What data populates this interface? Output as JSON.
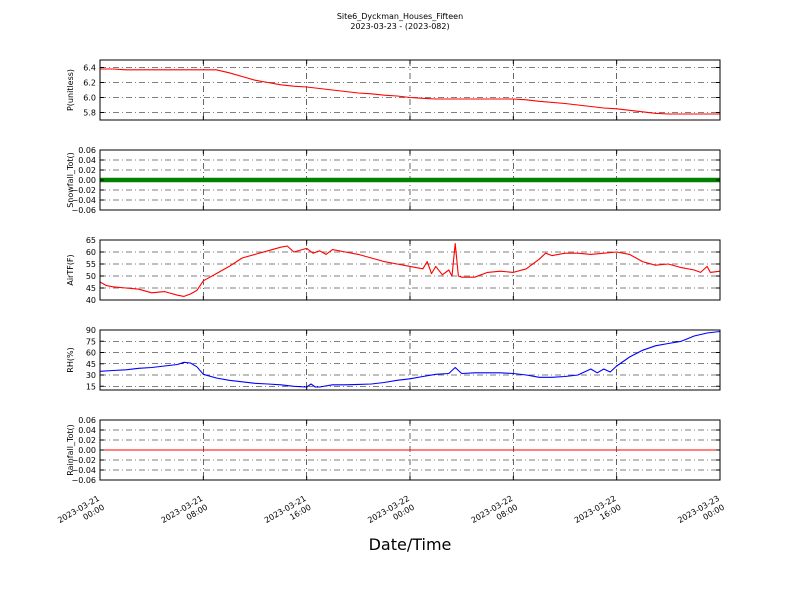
{
  "figure": {
    "title": "Site6_Dyckman_Houses_Fifteen",
    "subtitle": "2023-03-23 - (2023-082)",
    "xlabel": "Date/Time"
  },
  "chart_data": {
    "type": "line",
    "x_range": [
      "2023-03-21 00:00",
      "2023-03-23 00:00"
    ],
    "x_ticks": [
      {
        "t": "2023-03-21 00:00",
        "label": [
          "2023-03-21",
          "00:00"
        ]
      },
      {
        "t": "2023-03-21 08:00",
        "label": [
          "2023-03-21",
          "08:00"
        ]
      },
      {
        "t": "2023-03-21 16:00",
        "label": [
          "2023-03-21",
          "16:00"
        ]
      },
      {
        "t": "2023-03-22 00:00",
        "label": [
          "2023-03-22",
          "00:00"
        ]
      },
      {
        "t": "2023-03-22 08:00",
        "label": [
          "2023-03-22",
          "08:00"
        ]
      },
      {
        "t": "2023-03-22 16:00",
        "label": [
          "2023-03-22",
          "16:00"
        ]
      },
      {
        "t": "2023-03-23 00:00",
        "label": [
          "2023-03-23",
          "00:00"
        ]
      }
    ],
    "grid": true,
    "panels": [
      {
        "ylabel": "P(unitless)",
        "ylim": [
          5.7,
          6.5
        ],
        "yticks": [
          5.8,
          6.0,
          6.2,
          6.4
        ],
        "ytick_labels": [
          "5.8",
          "6.0",
          "6.2",
          "6.4"
        ],
        "color": "#ff0000",
        "style": "line",
        "series": [
          [
            "2023-03-21 00:00",
            6.38
          ],
          [
            "2023-03-21 01:00",
            6.38
          ],
          [
            "2023-03-21 02:00",
            6.37
          ],
          [
            "2023-03-21 04:00",
            6.37
          ],
          [
            "2023-03-21 06:00",
            6.37
          ],
          [
            "2023-03-21 08:00",
            6.37
          ],
          [
            "2023-03-21 09:00",
            6.37
          ],
          [
            "2023-03-21 10:00",
            6.33
          ],
          [
            "2023-03-21 11:00",
            6.28
          ],
          [
            "2023-03-21 12:00",
            6.23
          ],
          [
            "2023-03-21 13:00",
            6.2
          ],
          [
            "2023-03-21 14:00",
            6.17
          ],
          [
            "2023-03-21 15:00",
            6.15
          ],
          [
            "2023-03-21 16:00",
            6.14
          ],
          [
            "2023-03-21 17:00",
            6.12
          ],
          [
            "2023-03-21 18:00",
            6.1
          ],
          [
            "2023-03-21 19:00",
            6.08
          ],
          [
            "2023-03-21 20:00",
            6.06
          ],
          [
            "2023-03-21 21:00",
            6.05
          ],
          [
            "2023-03-21 22:00",
            6.03
          ],
          [
            "2023-03-21 23:00",
            6.02
          ],
          [
            "2023-03-22 00:00",
            6.0
          ],
          [
            "2023-03-22 01:00",
            5.99
          ],
          [
            "2023-03-22 02:00",
            5.98
          ],
          [
            "2023-03-22 04:00",
            5.98
          ],
          [
            "2023-03-22 06:00",
            5.98
          ],
          [
            "2023-03-22 08:00",
            5.98
          ],
          [
            "2023-03-22 09:00",
            5.97
          ],
          [
            "2023-03-22 10:00",
            5.95
          ],
          [
            "2023-03-22 12:00",
            5.92
          ],
          [
            "2023-03-22 13:00",
            5.9
          ],
          [
            "2023-03-22 14:00",
            5.88
          ],
          [
            "2023-03-22 15:00",
            5.86
          ],
          [
            "2023-03-22 16:00",
            5.85
          ],
          [
            "2023-03-22 17:00",
            5.83
          ],
          [
            "2023-03-22 18:00",
            5.81
          ],
          [
            "2023-03-22 19:00",
            5.79
          ],
          [
            "2023-03-22 20:00",
            5.78
          ],
          [
            "2023-03-22 22:00",
            5.78
          ],
          [
            "2023-03-23 00:00",
            5.78
          ]
        ]
      },
      {
        "ylabel": "Snowfall_Tot()",
        "ylim": [
          -0.06,
          0.06
        ],
        "yticks": [
          -0.06,
          -0.04,
          -0.02,
          0.0,
          0.02,
          0.04,
          0.06
        ],
        "ytick_labels": [
          "−0.06",
          "−0.04",
          "−0.02",
          "0.00",
          "0.02",
          "0.04",
          "0.06"
        ],
        "color": "#008000",
        "style": "thick-line",
        "series": [
          [
            "2023-03-21 00:00",
            0.0
          ],
          [
            "2023-03-23 00:00",
            0.0
          ]
        ]
      },
      {
        "ylabel": "AirTF(F)",
        "ylim": [
          40,
          65
        ],
        "yticks": [
          40,
          45,
          50,
          55,
          60,
          65
        ],
        "ytick_labels": [
          "40",
          "45",
          "50",
          "55",
          "60",
          "65"
        ],
        "color": "#ff0000",
        "style": "line",
        "series": [
          [
            "2023-03-21 00:00",
            47.5
          ],
          [
            "2023-03-21 00:30",
            46
          ],
          [
            "2023-03-21 01:00",
            45.5
          ],
          [
            "2023-03-21 02:00",
            45
          ],
          [
            "2023-03-21 03:00",
            44.5
          ],
          [
            "2023-03-21 04:00",
            43
          ],
          [
            "2023-03-21 05:00",
            43.5
          ],
          [
            "2023-03-21 06:00",
            42
          ],
          [
            "2023-03-21 06:30",
            41.5
          ],
          [
            "2023-03-21 07:00",
            42.5
          ],
          [
            "2023-03-21 07:30",
            44
          ],
          [
            "2023-03-21 08:00",
            48
          ],
          [
            "2023-03-21 09:00",
            51
          ],
          [
            "2023-03-21 10:00",
            54
          ],
          [
            "2023-03-21 11:00",
            57.5
          ],
          [
            "2023-03-21 12:00",
            59
          ],
          [
            "2023-03-21 13:00",
            60.5
          ],
          [
            "2023-03-21 14:00",
            62
          ],
          [
            "2023-03-21 14:30",
            62.5
          ],
          [
            "2023-03-21 15:00",
            60
          ],
          [
            "2023-03-21 16:00",
            61.5
          ],
          [
            "2023-03-21 16:30",
            59.5
          ],
          [
            "2023-03-21 17:00",
            60.5
          ],
          [
            "2023-03-21 17:30",
            59
          ],
          [
            "2023-03-21 18:00",
            61
          ],
          [
            "2023-03-21 19:00",
            60
          ],
          [
            "2023-03-21 20:00",
            59
          ],
          [
            "2023-03-21 21:00",
            57.5
          ],
          [
            "2023-03-21 22:00",
            56
          ],
          [
            "2023-03-21 23:00",
            55
          ],
          [
            "2023-03-22 00:00",
            54
          ],
          [
            "2023-03-22 01:00",
            53
          ],
          [
            "2023-03-22 01:20",
            56
          ],
          [
            "2023-03-22 01:40",
            51
          ],
          [
            "2023-03-22 02:00",
            54
          ],
          [
            "2023-03-22 02:30",
            50.5
          ],
          [
            "2023-03-22 03:00",
            52.5
          ],
          [
            "2023-03-22 03:15",
            50
          ],
          [
            "2023-03-22 03:30",
            63.5
          ],
          [
            "2023-03-22 03:45",
            50
          ],
          [
            "2023-03-22 04:00",
            49.5
          ],
          [
            "2023-03-22 05:00",
            49.5
          ],
          [
            "2023-03-22 06:00",
            51.5
          ],
          [
            "2023-03-22 07:00",
            52
          ],
          [
            "2023-03-22 08:00",
            51.5
          ],
          [
            "2023-03-22 09:00",
            53
          ],
          [
            "2023-03-22 10:00",
            57
          ],
          [
            "2023-03-22 10:30",
            59.5
          ],
          [
            "2023-03-22 11:00",
            58.5
          ],
          [
            "2023-03-22 12:00",
            59.5
          ],
          [
            "2023-03-22 13:00",
            59.5
          ],
          [
            "2023-03-22 14:00",
            59
          ],
          [
            "2023-03-22 15:00",
            59.5
          ],
          [
            "2023-03-22 16:00",
            60
          ],
          [
            "2023-03-22 17:00",
            59
          ],
          [
            "2023-03-22 18:00",
            56
          ],
          [
            "2023-03-22 19:00",
            54.5
          ],
          [
            "2023-03-22 20:00",
            55
          ],
          [
            "2023-03-22 21:00",
            53.5
          ],
          [
            "2023-03-22 22:00",
            52.5
          ],
          [
            "2023-03-22 22:30",
            51.5
          ],
          [
            "2023-03-22 23:00",
            54
          ],
          [
            "2023-03-22 23:15",
            51.5
          ],
          [
            "2023-03-23 00:00",
            52
          ]
        ]
      },
      {
        "ylabel": "RH(%)",
        "ylim": [
          10,
          90
        ],
        "yticks": [
          15,
          30,
          45,
          60,
          75,
          90
        ],
        "ytick_labels": [
          "15",
          "30",
          "45",
          "60",
          "75",
          "90"
        ],
        "color": "#0000ff",
        "style": "line",
        "series": [
          [
            "2023-03-21 00:00",
            35
          ],
          [
            "2023-03-21 01:00",
            36
          ],
          [
            "2023-03-21 02:00",
            37
          ],
          [
            "2023-03-21 03:00",
            39
          ],
          [
            "2023-03-21 04:00",
            40
          ],
          [
            "2023-03-21 05:00",
            42
          ],
          [
            "2023-03-21 06:00",
            44
          ],
          [
            "2023-03-21 06:30",
            47
          ],
          [
            "2023-03-21 07:00",
            46
          ],
          [
            "2023-03-21 07:30",
            41
          ],
          [
            "2023-03-21 08:00",
            31
          ],
          [
            "2023-03-21 09:00",
            26
          ],
          [
            "2023-03-21 10:00",
            23
          ],
          [
            "2023-03-21 11:00",
            21
          ],
          [
            "2023-03-21 12:00",
            19
          ],
          [
            "2023-03-21 13:00",
            18
          ],
          [
            "2023-03-21 14:00",
            17
          ],
          [
            "2023-03-21 15:00",
            15
          ],
          [
            "2023-03-21 16:00",
            14
          ],
          [
            "2023-03-21 16:20",
            18
          ],
          [
            "2023-03-21 16:40",
            14
          ],
          [
            "2023-03-21 17:00",
            14
          ],
          [
            "2023-03-21 18:00",
            17
          ],
          [
            "2023-03-21 19:00",
            17
          ],
          [
            "2023-03-21 20:00",
            17.5
          ],
          [
            "2023-03-21 21:00",
            18
          ],
          [
            "2023-03-21 22:00",
            20
          ],
          [
            "2023-03-21 23:00",
            23
          ],
          [
            "2023-03-22 00:00",
            25
          ],
          [
            "2023-03-22 01:00",
            28
          ],
          [
            "2023-03-22 02:00",
            31
          ],
          [
            "2023-03-22 03:00",
            32
          ],
          [
            "2023-03-22 03:30",
            40
          ],
          [
            "2023-03-22 04:00",
            32
          ],
          [
            "2023-03-22 05:00",
            33
          ],
          [
            "2023-03-22 06:00",
            33
          ],
          [
            "2023-03-22 07:00",
            33
          ],
          [
            "2023-03-22 08:00",
            32
          ],
          [
            "2023-03-22 09:00",
            30
          ],
          [
            "2023-03-22 10:00",
            27
          ],
          [
            "2023-03-22 11:00",
            27
          ],
          [
            "2023-03-22 12:00",
            28
          ],
          [
            "2023-03-22 13:00",
            30
          ],
          [
            "2023-03-22 14:00",
            38
          ],
          [
            "2023-03-22 14:30",
            33
          ],
          [
            "2023-03-22 15:00",
            38
          ],
          [
            "2023-03-22 15:30",
            34
          ],
          [
            "2023-03-22 16:00",
            42
          ],
          [
            "2023-03-22 17:00",
            54
          ],
          [
            "2023-03-22 18:00",
            63
          ],
          [
            "2023-03-22 19:00",
            69
          ],
          [
            "2023-03-22 20:00",
            72
          ],
          [
            "2023-03-22 21:00",
            75
          ],
          [
            "2023-03-22 22:00",
            82
          ],
          [
            "2023-03-22 23:00",
            86
          ],
          [
            "2023-03-23 00:00",
            88
          ]
        ]
      },
      {
        "ylabel": "Rainfall_Tot()",
        "ylim": [
          -0.06,
          0.06
        ],
        "yticks": [
          -0.06,
          -0.04,
          -0.02,
          0.0,
          0.02,
          0.04,
          0.06
        ],
        "ytick_labels": [
          "−0.06",
          "−0.04",
          "−0.02",
          "0.00",
          "0.02",
          "0.04",
          "0.06"
        ],
        "color": "#ff0000",
        "style": "line",
        "series": [
          [
            "2023-03-21 00:00",
            0.0
          ],
          [
            "2023-03-23 00:00",
            0.0
          ]
        ]
      }
    ]
  }
}
